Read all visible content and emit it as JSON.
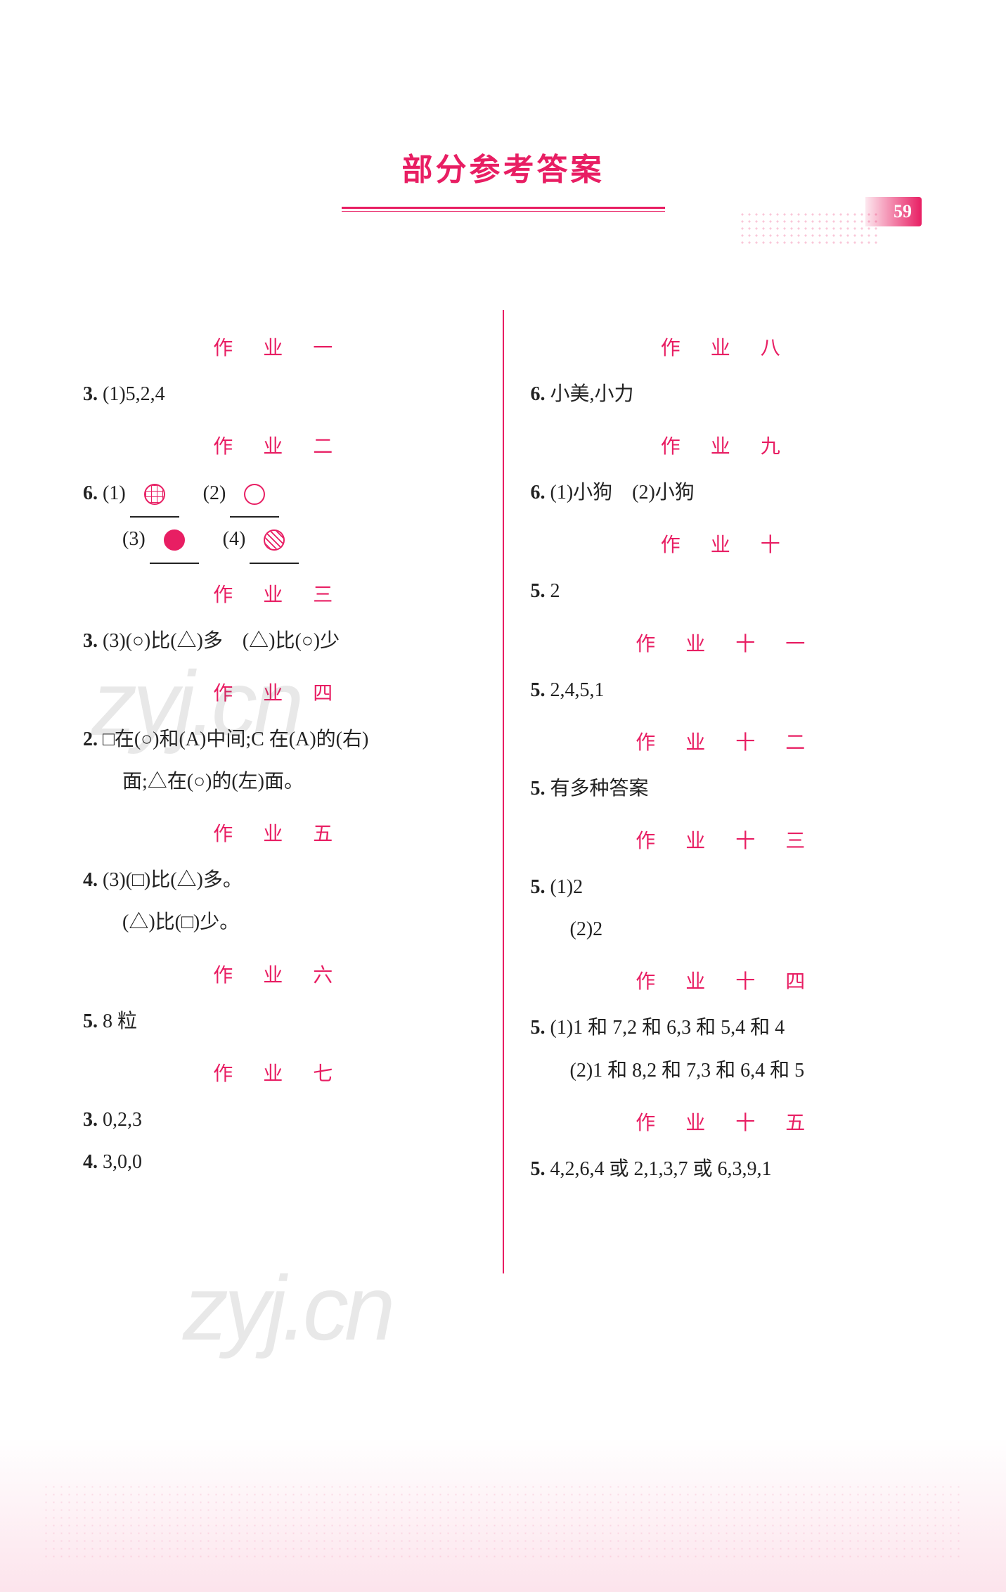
{
  "page_number": "59",
  "title": "部分参考答案",
  "accent_color": "#e81e63",
  "text_color": "#222222",
  "background_color": "#ffffff",
  "watermark_text": "zyj.cn",
  "left_column": {
    "sections": [
      {
        "heading": "作 业 一",
        "lines": [
          {
            "label": "3.",
            "text": "(1)5,2,4"
          }
        ]
      },
      {
        "heading": "作 业 二",
        "lines": [
          {
            "label": "6.",
            "text_parts": [
              "(1)",
              {
                "shape": "grid-circle"
              },
              "　(2)",
              {
                "shape": "empty-circle"
              }
            ]
          },
          {
            "label": "",
            "indent": true,
            "text_parts": [
              "(3)",
              {
                "shape": "solid-circle"
              },
              "　(4)",
              {
                "shape": "hatch-circle"
              }
            ]
          }
        ]
      },
      {
        "heading": "作 业 三",
        "lines": [
          {
            "label": "3.",
            "text": "(3)(○)比(△)多　(△)比(○)少"
          }
        ]
      },
      {
        "heading": "作 业 四",
        "lines": [
          {
            "label": "2.",
            "text": "□在(○)和(A)中间;C 在(A)的(右)"
          },
          {
            "label": "",
            "indent": true,
            "text": "面;△在(○)的(左)面。"
          }
        ]
      },
      {
        "heading": "作 业 五",
        "lines": [
          {
            "label": "4.",
            "text": "(3)(□)比(△)多。"
          },
          {
            "label": "",
            "indent": true,
            "text": "(△)比(□)少。"
          }
        ]
      },
      {
        "heading": "作 业 六",
        "lines": [
          {
            "label": "5.",
            "text": "8 粒"
          }
        ]
      },
      {
        "heading": "作 业 七",
        "lines": [
          {
            "label": "3.",
            "text": "0,2,3"
          },
          {
            "label": "4.",
            "text": "3,0,0"
          }
        ]
      }
    ]
  },
  "right_column": {
    "sections": [
      {
        "heading": "作 业 八",
        "lines": [
          {
            "label": "6.",
            "text": "小美,小力"
          }
        ]
      },
      {
        "heading": "作 业 九",
        "lines": [
          {
            "label": "6.",
            "text": "(1)小狗　(2)小狗"
          }
        ]
      },
      {
        "heading": "作 业 十",
        "lines": [
          {
            "label": "5.",
            "text": "2"
          }
        ]
      },
      {
        "heading": "作 业 十 一",
        "lines": [
          {
            "label": "5.",
            "text": "2,4,5,1"
          }
        ]
      },
      {
        "heading": "作 业 十 二",
        "lines": [
          {
            "label": "5.",
            "text": "有多种答案"
          }
        ]
      },
      {
        "heading": "作 业 十 三",
        "lines": [
          {
            "label": "5.",
            "text": "(1)2"
          },
          {
            "label": "",
            "indent": true,
            "text": "(2)2"
          }
        ]
      },
      {
        "heading": "作 业 十 四",
        "lines": [
          {
            "label": "5.",
            "text": "(1)1 和 7,2 和 6,3 和 5,4 和 4"
          },
          {
            "label": "",
            "indent": true,
            "text": "(2)1 和 8,2 和 7,3 和 6,4 和 5"
          }
        ]
      },
      {
        "heading": "作 业 十 五",
        "lines": [
          {
            "label": "5.",
            "text": "4,2,6,4 或 2,1,3,7 或 6,3,9,1"
          }
        ]
      }
    ]
  }
}
